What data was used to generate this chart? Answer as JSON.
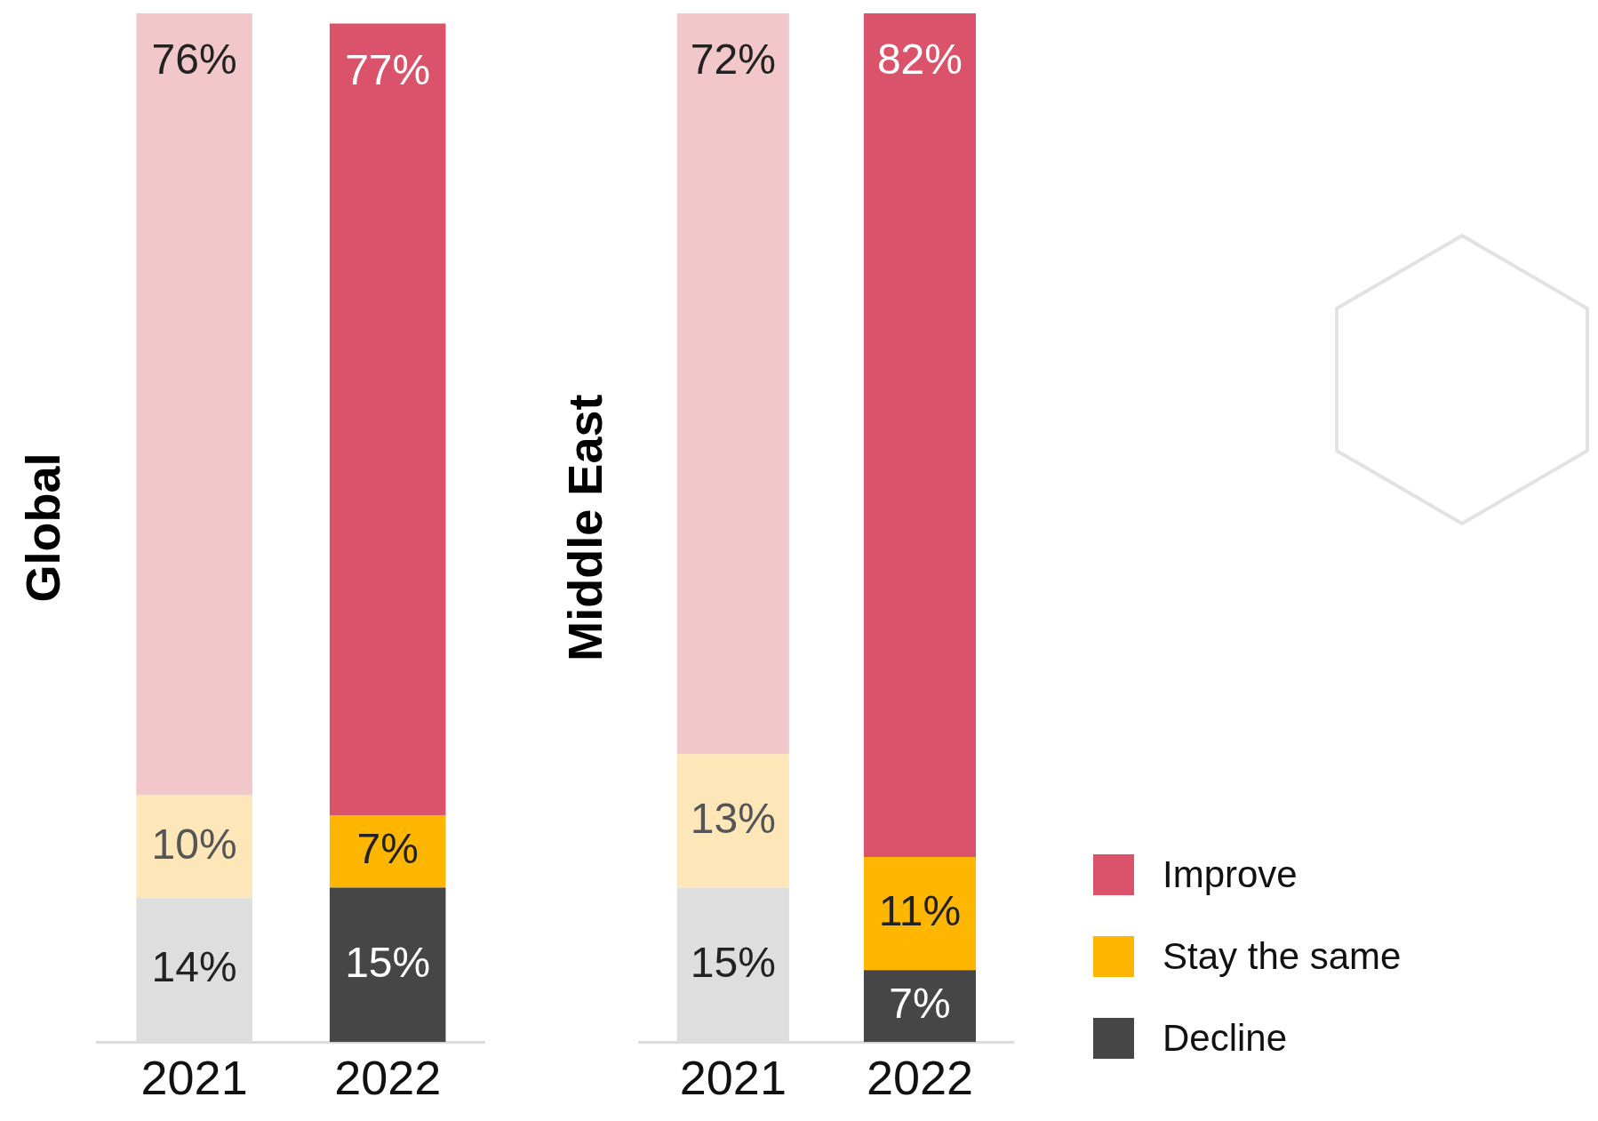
{
  "chart_data": [
    {
      "type": "bar",
      "ylabel": "Global",
      "categories": [
        "2021",
        "2022"
      ],
      "stacked": true,
      "ylim": [
        0,
        100
      ],
      "tick_labels": "x",
      "grid": false,
      "legend": false,
      "series": [
        {
          "color": "#464646",
          "colors": [
            "#dedede",
            "#464646"
          ],
          "values": [
            14,
            15
          ],
          "value_labels": [
            "14%",
            "15%"
          ]
        },
        {
          "color": "#ffb600",
          "colors": [
            "#fde7b9",
            "#ffb600"
          ],
          "values": [
            10,
            7
          ],
          "value_labels": [
            "10%",
            "7%"
          ]
        },
        {
          "color": "#db536a",
          "colors": [
            "#f2c7c9",
            "#db536a"
          ],
          "values": [
            76,
            77
          ],
          "value_labels": [
            "76%",
            "77%"
          ]
        }
      ]
    },
    {
      "type": "bar",
      "ylabel": "Middle East",
      "categories": [
        "2021",
        "2022"
      ],
      "stacked": true,
      "ylim": [
        0,
        100
      ],
      "tick_labels": "x",
      "grid": false,
      "legend": "bottom right",
      "series": [
        {
          "name": "Decline",
          "color": "#464646",
          "colors": [
            "#dedede",
            "#464646"
          ],
          "values": [
            15,
            7
          ],
          "value_labels": [
            "15%",
            "7%"
          ]
        },
        {
          "name": "Stay the same",
          "color": "#ffb600",
          "colors": [
            "#fde7b9",
            "#ffb600"
          ],
          "values": [
            13,
            11
          ],
          "value_labels": [
            "13%",
            "11%"
          ]
        },
        {
          "name": "Improve",
          "color": "#db536a",
          "colors": [
            "#f2c7c9",
            "#db536a"
          ],
          "values": [
            72,
            82
          ],
          "value_labels": [
            "72%",
            "82%"
          ]
        }
      ]
    }
  ]
}
